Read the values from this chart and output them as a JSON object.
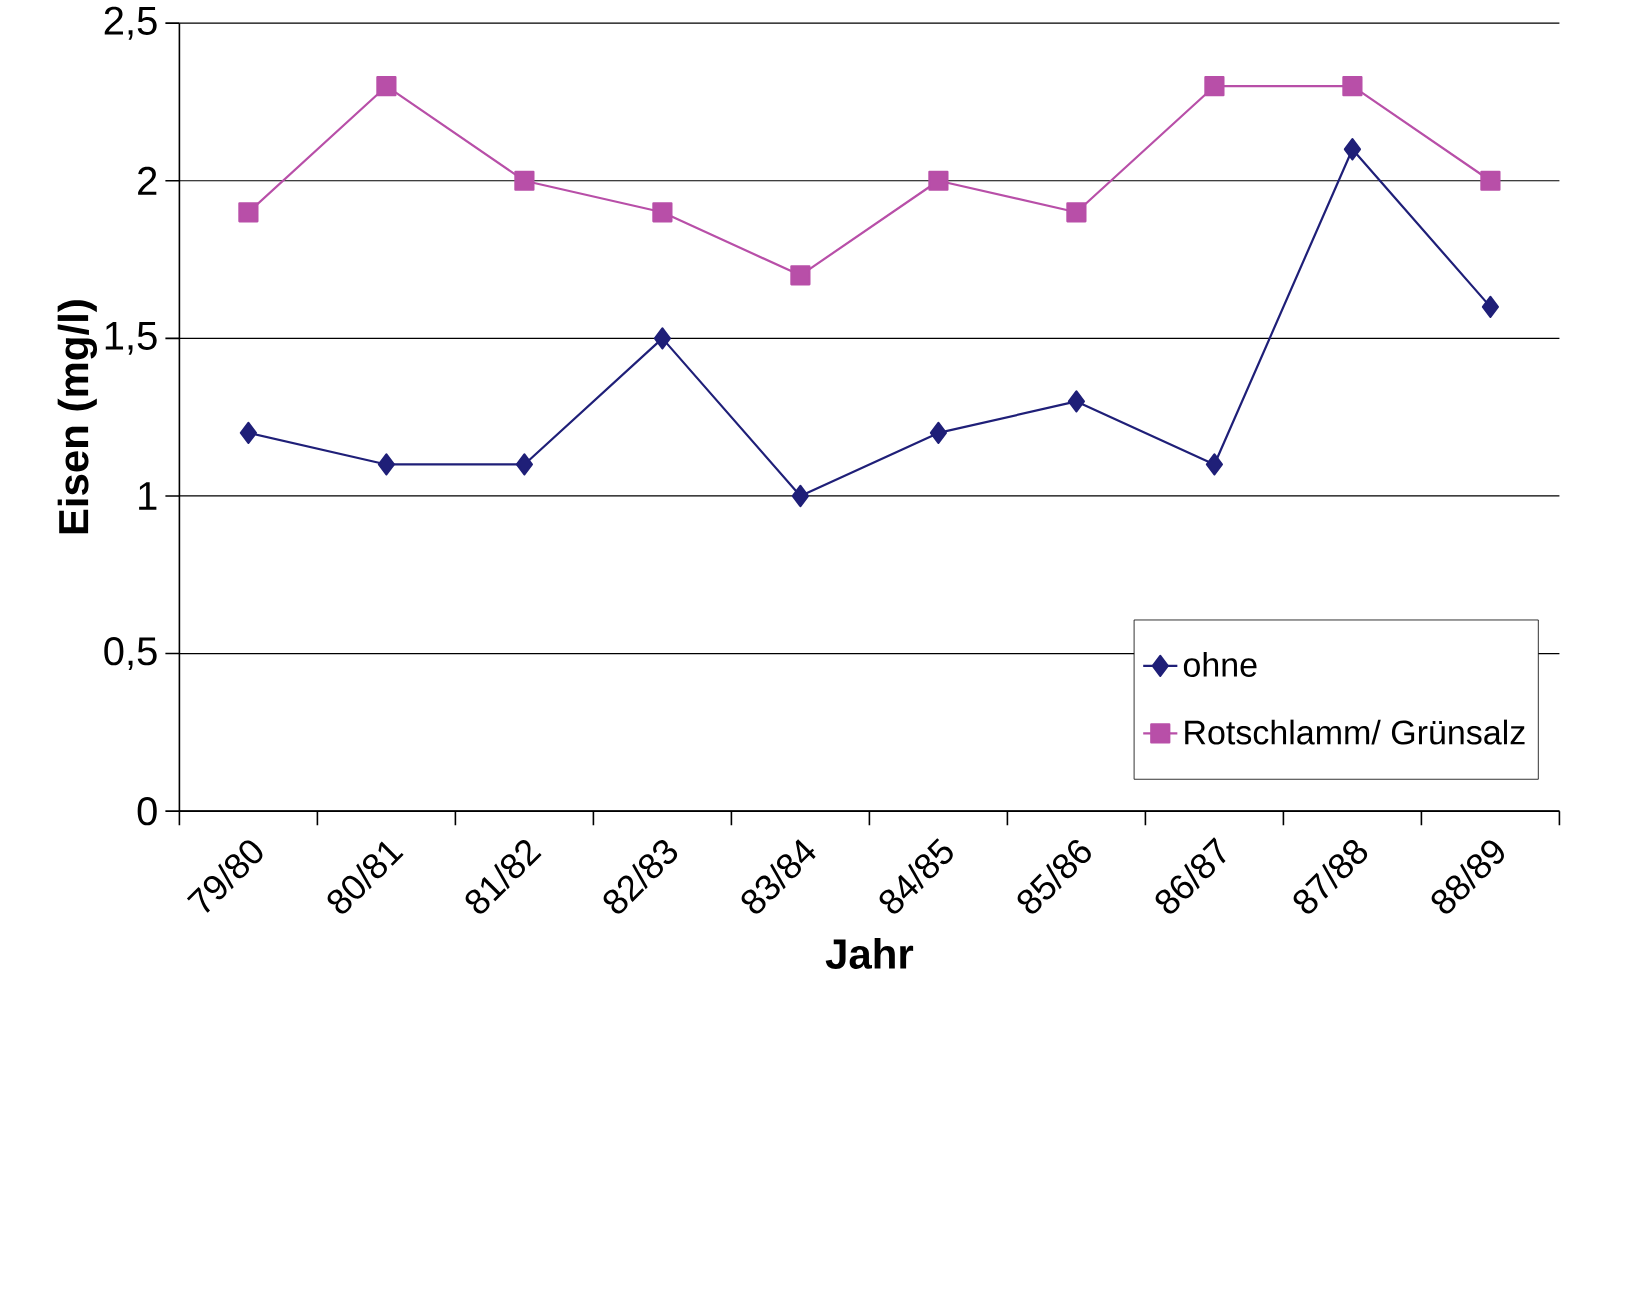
{
  "chart_data": {
    "type": "line",
    "xlabel": "Jahr",
    "ylabel": "Eisen (mg/l)",
    "categories": [
      "79/80",
      "80/81",
      "81/82",
      "82/83",
      "83/84",
      "84/85",
      "85/86",
      "86/87",
      "87/88",
      "88/89"
    ],
    "series": [
      {
        "name": "ohne",
        "color": "#1f1f78",
        "marker": "diamond",
        "values": [
          1.2,
          1.1,
          1.1,
          1.5,
          1.0,
          1.2,
          1.3,
          1.1,
          2.1,
          1.6
        ]
      },
      {
        "name": "Rotschlamm/ Grünsalz",
        "color": "#b84fa8",
        "marker": "square",
        "values": [
          1.9,
          2.3,
          2.0,
          1.9,
          1.7,
          2.0,
          1.9,
          2.3,
          2.3,
          2.0
        ]
      }
    ],
    "ylim": [
      0,
      2.5
    ],
    "yticks": [
      0,
      {
        "value": 0.5,
        "label": "0,5"
      },
      1,
      {
        "value": 1.5,
        "label": "1,5"
      },
      2,
      {
        "value": 2.5,
        "label": "2,5"
      }
    ],
    "grid": "y",
    "legend": "bottom right",
    "line_style": "solid"
  }
}
